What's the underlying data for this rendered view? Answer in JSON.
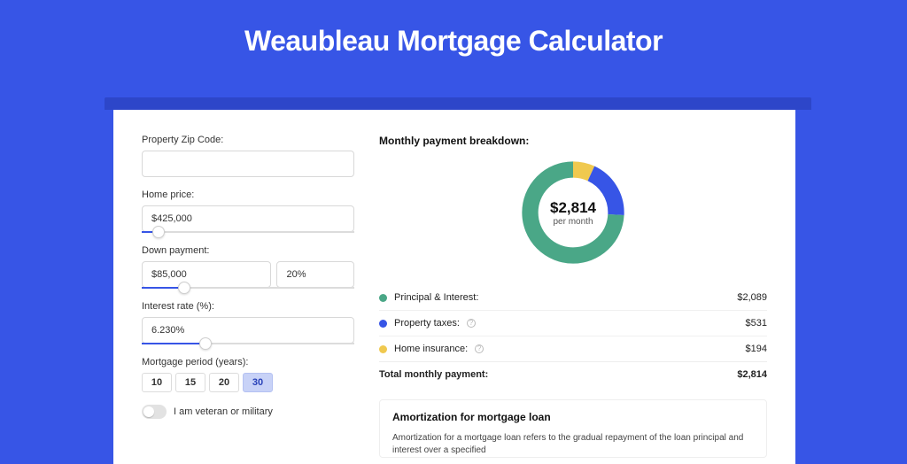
{
  "colors": {
    "page_bg": "#3755e6",
    "panel_bg": "#ffffff",
    "donut_principal": "#4aa787",
    "donut_taxes": "#3755e6",
    "donut_insurance": "#f0c94f"
  },
  "header": {
    "title": "Weaubleau Mortgage Calculator"
  },
  "form": {
    "zip": {
      "label": "Property Zip Code:",
      "value": ""
    },
    "home_price": {
      "label": "Home price:",
      "value": "$425,000",
      "slider_pct": 8
    },
    "down_payment": {
      "label": "Down payment:",
      "amount": "$85,000",
      "percent": "20%",
      "slider_pct": 20
    },
    "interest": {
      "label": "Interest rate (%):",
      "value": "6.230%",
      "slider_pct": 30
    },
    "period": {
      "label": "Mortgage period (years):",
      "options": [
        "10",
        "15",
        "20",
        "30"
      ],
      "selected": "30"
    },
    "veteran": {
      "label": "I am veteran or military",
      "on": false
    }
  },
  "breakdown": {
    "title": "Monthly payment breakdown:",
    "center_amount": "$2,814",
    "center_sub": "per month",
    "items": [
      {
        "dot": "#4aa787",
        "label": "Principal & Interest:",
        "amount": "$2,089",
        "info": false,
        "fraction": 0.742
      },
      {
        "dot": "#3755e6",
        "label": "Property taxes:",
        "amount": "$531",
        "info": true,
        "fraction": 0.189
      },
      {
        "dot": "#f0c94f",
        "label": "Home insurance:",
        "amount": "$194",
        "info": true,
        "fraction": 0.069
      }
    ],
    "total_label": "Total monthly payment:",
    "total_amount": "$2,814"
  },
  "amort": {
    "title": "Amortization for mortgage loan",
    "text": "Amortization for a mortgage loan refers to the gradual repayment of the loan principal and interest over a specified"
  }
}
